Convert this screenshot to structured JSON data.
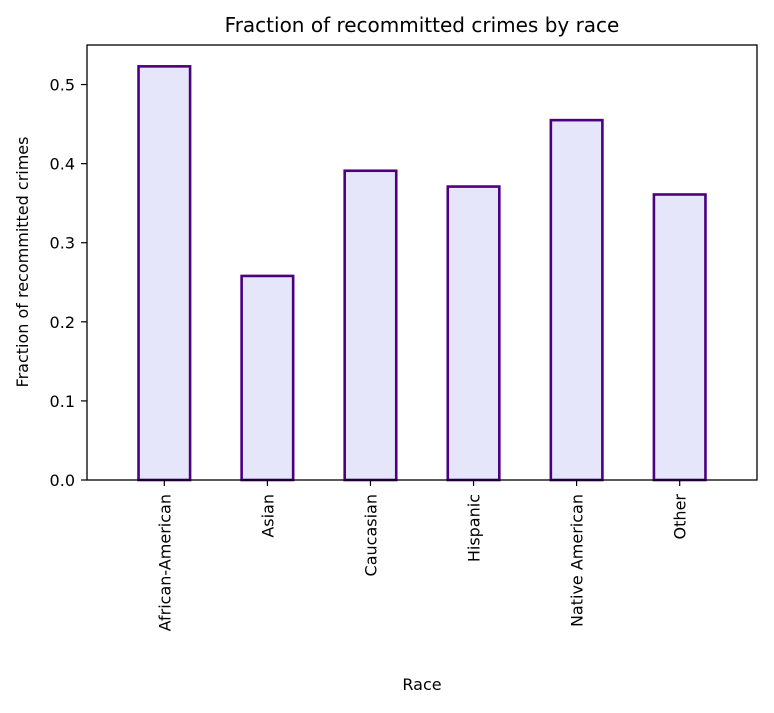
{
  "chart_data": {
    "type": "bar",
    "title": "Fraction of recommitted crimes by race",
    "xlabel": "Race",
    "ylabel": "Fraction of recommitted crimes",
    "categories": [
      "African-American",
      "Asian",
      "Caucasian",
      "Hispanic",
      "Native American",
      "Other"
    ],
    "values": [
      0.523,
      0.258,
      0.391,
      0.371,
      0.455,
      0.361
    ],
    "ylim": [
      0,
      0.55
    ],
    "yticks": [
      0.0,
      0.1,
      0.2,
      0.3,
      0.4,
      0.5
    ],
    "ytick_labels": [
      "0.0",
      "0.1",
      "0.2",
      "0.3",
      "0.4",
      "0.5"
    ],
    "grid": false,
    "legend": "none",
    "colors": {
      "bar_fill": "#e6e6fa",
      "bar_edge": "#4b0082",
      "axis": "#000000"
    }
  }
}
